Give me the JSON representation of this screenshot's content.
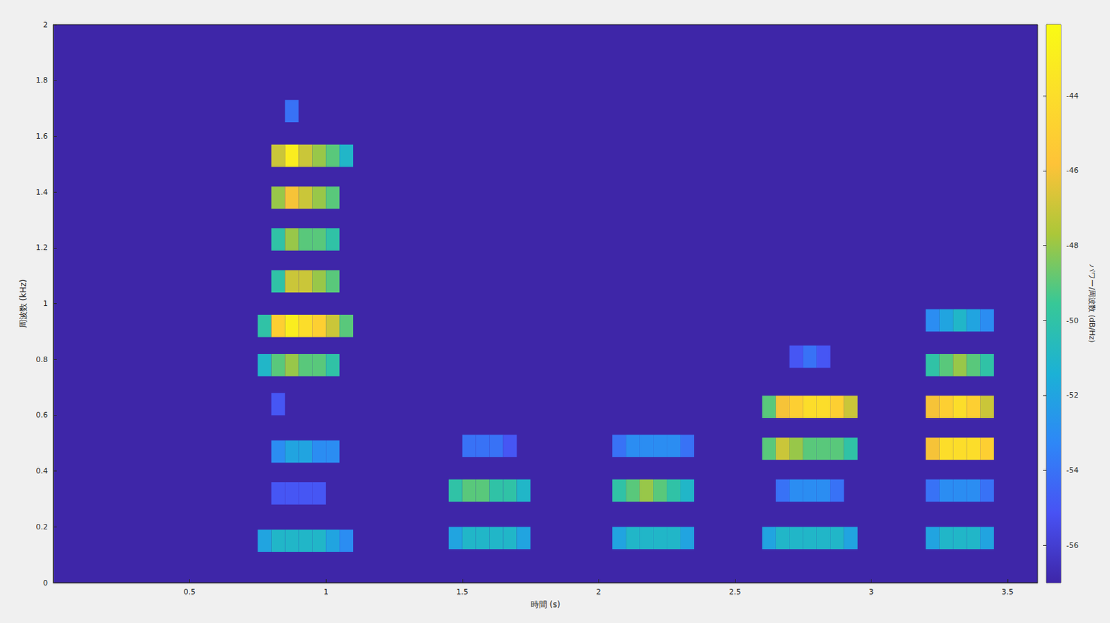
{
  "chart_data": {
    "type": "heatmap",
    "xlabel": "時間 (s)",
    "ylabel": "周波数 (kHz)",
    "xlim": [
      0,
      3.61
    ],
    "xticks": [
      0.5,
      1,
      1.5,
      2,
      2.5,
      3,
      3.5
    ],
    "ylim": [
      0,
      2
    ],
    "yticks": [
      0,
      0.2,
      0.4,
      0.6,
      0.8,
      1,
      1.2,
      1.4,
      1.6,
      1.8,
      2
    ],
    "grid": false,
    "color": "parula",
    "colorbar": {
      "label": "パワー/周波数 (dB/Hz)",
      "clim": [
        -57,
        -42.1
      ],
      "ticks": [
        -56,
        -54,
        -52,
        -50,
        -48,
        -46,
        -44
      ]
    },
    "x_step": 0.05,
    "y_step": 0.08,
    "cells": [
      [
        0.75,
        0.11,
        -52
      ],
      [
        0.8,
        0.11,
        -51
      ],
      [
        0.85,
        0.11,
        -51
      ],
      [
        0.9,
        0.11,
        -51
      ],
      [
        0.95,
        0.11,
        -51
      ],
      [
        1.0,
        0.11,
        -52
      ],
      [
        1.05,
        0.11,
        -53
      ],
      [
        0.8,
        0.28,
        -55
      ],
      [
        0.85,
        0.28,
        -55
      ],
      [
        0.9,
        0.28,
        -55
      ],
      [
        0.95,
        0.28,
        -55
      ],
      [
        0.8,
        0.43,
        -53
      ],
      [
        0.85,
        0.43,
        -52
      ],
      [
        0.9,
        0.43,
        -52
      ],
      [
        0.95,
        0.43,
        -53
      ],
      [
        1.0,
        0.43,
        -53
      ],
      [
        0.8,
        0.6,
        -55
      ],
      [
        0.75,
        0.74,
        -51
      ],
      [
        0.8,
        0.74,
        -49
      ],
      [
        0.85,
        0.74,
        -48
      ],
      [
        0.9,
        0.74,
        -49
      ],
      [
        0.95,
        0.74,
        -49
      ],
      [
        1.0,
        0.74,
        -50
      ],
      [
        0.75,
        0.88,
        -50
      ],
      [
        0.8,
        0.88,
        -45
      ],
      [
        0.85,
        0.88,
        -43
      ],
      [
        0.9,
        0.88,
        -44
      ],
      [
        0.95,
        0.88,
        -45
      ],
      [
        1.0,
        0.88,
        -47
      ],
      [
        1.05,
        0.88,
        -49
      ],
      [
        0.8,
        1.04,
        -50
      ],
      [
        0.85,
        1.04,
        -47
      ],
      [
        0.9,
        1.04,
        -47
      ],
      [
        0.95,
        1.04,
        -48
      ],
      [
        1.0,
        1.04,
        -49
      ],
      [
        0.8,
        1.19,
        -50
      ],
      [
        0.85,
        1.19,
        -48
      ],
      [
        0.9,
        1.19,
        -49
      ],
      [
        0.95,
        1.19,
        -49
      ],
      [
        1.0,
        1.19,
        -50
      ],
      [
        0.8,
        1.34,
        -48
      ],
      [
        0.85,
        1.34,
        -46
      ],
      [
        0.9,
        1.34,
        -47
      ],
      [
        0.95,
        1.34,
        -48
      ],
      [
        1.0,
        1.34,
        -49
      ],
      [
        0.8,
        1.49,
        -47
      ],
      [
        0.85,
        1.49,
        -43
      ],
      [
        0.9,
        1.49,
        -47
      ],
      [
        0.95,
        1.49,
        -48
      ],
      [
        1.0,
        1.49,
        -49
      ],
      [
        1.05,
        1.49,
        -51
      ],
      [
        0.85,
        1.65,
        -54
      ],
      [
        1.45,
        0.12,
        -52
      ],
      [
        1.5,
        0.12,
        -51
      ],
      [
        1.55,
        0.12,
        -51
      ],
      [
        1.6,
        0.12,
        -51
      ],
      [
        1.65,
        0.12,
        -51
      ],
      [
        1.7,
        0.12,
        -52
      ],
      [
        1.45,
        0.29,
        -50
      ],
      [
        1.5,
        0.29,
        -49
      ],
      [
        1.55,
        0.29,
        -49
      ],
      [
        1.6,
        0.29,
        -50
      ],
      [
        1.65,
        0.29,
        -50
      ],
      [
        1.7,
        0.29,
        -51
      ],
      [
        1.5,
        0.45,
        -54
      ],
      [
        1.55,
        0.45,
        -54
      ],
      [
        1.6,
        0.45,
        -54
      ],
      [
        1.65,
        0.45,
        -55
      ],
      [
        2.05,
        0.12,
        -52
      ],
      [
        2.1,
        0.12,
        -51
      ],
      [
        2.15,
        0.12,
        -51
      ],
      [
        2.2,
        0.12,
        -51
      ],
      [
        2.25,
        0.12,
        -51
      ],
      [
        2.3,
        0.12,
        -52
      ],
      [
        2.05,
        0.29,
        -50
      ],
      [
        2.1,
        0.29,
        -49
      ],
      [
        2.15,
        0.29,
        -48
      ],
      [
        2.2,
        0.29,
        -49
      ],
      [
        2.25,
        0.29,
        -50
      ],
      [
        2.3,
        0.29,
        -51
      ],
      [
        2.05,
        0.45,
        -54
      ],
      [
        2.1,
        0.45,
        -53
      ],
      [
        2.15,
        0.45,
        -53
      ],
      [
        2.2,
        0.45,
        -53
      ],
      [
        2.25,
        0.45,
        -53
      ],
      [
        2.3,
        0.45,
        -54
      ],
      [
        2.6,
        0.12,
        -52
      ],
      [
        2.65,
        0.12,
        -51
      ],
      [
        2.7,
        0.12,
        -51
      ],
      [
        2.75,
        0.12,
        -51
      ],
      [
        2.8,
        0.12,
        -51
      ],
      [
        2.85,
        0.12,
        -51
      ],
      [
        2.9,
        0.12,
        -52
      ],
      [
        2.65,
        0.29,
        -54
      ],
      [
        2.7,
        0.29,
        -53
      ],
      [
        2.75,
        0.29,
        -53
      ],
      [
        2.8,
        0.29,
        -53
      ],
      [
        2.85,
        0.29,
        -54
      ],
      [
        2.6,
        0.44,
        -49
      ],
      [
        2.65,
        0.44,
        -47
      ],
      [
        2.7,
        0.44,
        -48
      ],
      [
        2.75,
        0.44,
        -49
      ],
      [
        2.8,
        0.44,
        -49
      ],
      [
        2.85,
        0.44,
        -49
      ],
      [
        2.9,
        0.44,
        -50
      ],
      [
        2.6,
        0.59,
        -49
      ],
      [
        2.65,
        0.59,
        -46
      ],
      [
        2.7,
        0.59,
        -45
      ],
      [
        2.75,
        0.59,
        -44
      ],
      [
        2.8,
        0.59,
        -44
      ],
      [
        2.85,
        0.59,
        -45
      ],
      [
        2.9,
        0.59,
        -47
      ],
      [
        2.7,
        0.77,
        -55
      ],
      [
        2.75,
        0.77,
        -54
      ],
      [
        2.8,
        0.77,
        -55
      ],
      [
        3.2,
        0.12,
        -52
      ],
      [
        3.25,
        0.12,
        -51
      ],
      [
        3.3,
        0.12,
        -51
      ],
      [
        3.35,
        0.12,
        -51
      ],
      [
        3.4,
        0.12,
        -52
      ],
      [
        3.2,
        0.29,
        -54
      ],
      [
        3.25,
        0.29,
        -53
      ],
      [
        3.3,
        0.29,
        -53
      ],
      [
        3.35,
        0.29,
        -53
      ],
      [
        3.4,
        0.29,
        -54
      ],
      [
        3.2,
        0.44,
        -46
      ],
      [
        3.25,
        0.44,
        -44
      ],
      [
        3.3,
        0.44,
        -44
      ],
      [
        3.35,
        0.44,
        -44
      ],
      [
        3.4,
        0.44,
        -45
      ],
      [
        3.2,
        0.59,
        -46
      ],
      [
        3.25,
        0.59,
        -45
      ],
      [
        3.3,
        0.59,
        -44
      ],
      [
        3.35,
        0.59,
        -45
      ],
      [
        3.4,
        0.59,
        -47
      ],
      [
        3.2,
        0.74,
        -50
      ],
      [
        3.25,
        0.74,
        -49
      ],
      [
        3.3,
        0.74,
        -48
      ],
      [
        3.35,
        0.74,
        -49
      ],
      [
        3.4,
        0.74,
        -50
      ],
      [
        3.2,
        0.9,
        -53
      ],
      [
        3.25,
        0.9,
        -52
      ],
      [
        3.3,
        0.9,
        -51
      ],
      [
        3.35,
        0.9,
        -52
      ],
      [
        3.4,
        0.9,
        -53
      ]
    ]
  }
}
